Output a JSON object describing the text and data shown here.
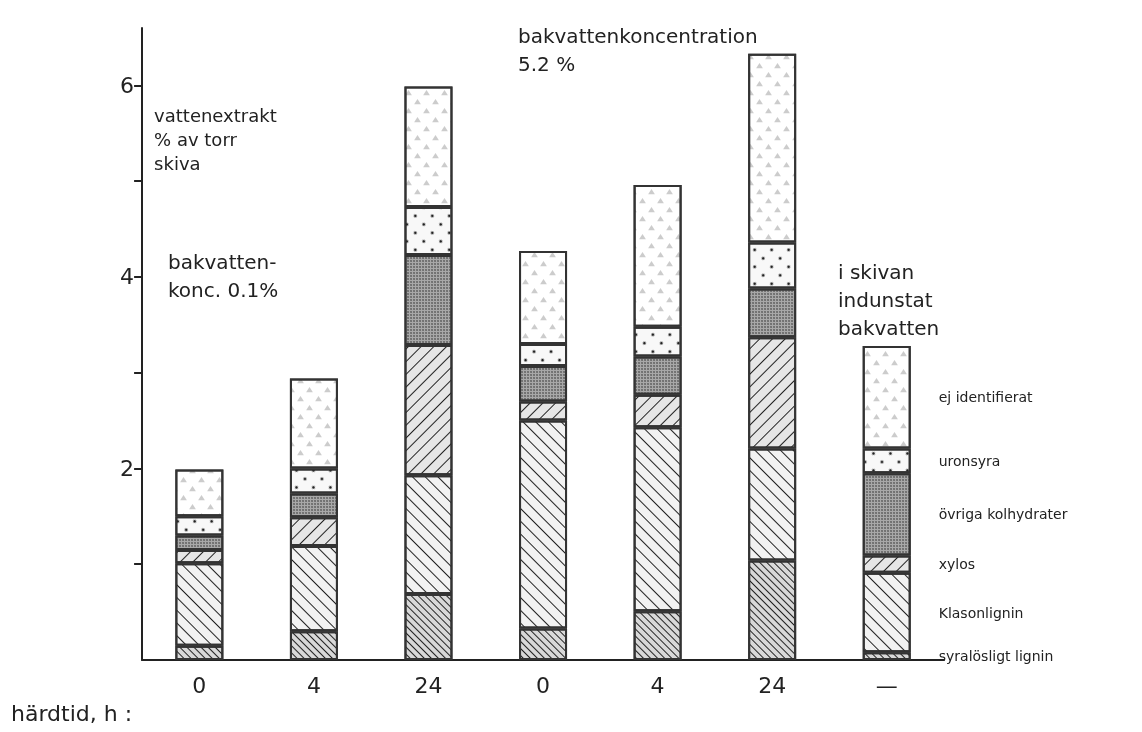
{
  "chart_data": {
    "type": "bar",
    "stacked": true,
    "ylabel": "vattenextrakt\n% av torr\nskiva",
    "xlabel": "härdtid, h :",
    "categories": [
      "0",
      "4",
      "24",
      "0",
      "4",
      "24",
      "—"
    ],
    "ylim": [
      0,
      6.6
    ],
    "yticks": [
      {
        "value": 1,
        "label": null
      },
      2,
      {
        "value": 3,
        "label": null
      },
      4,
      {
        "value": 5,
        "label": null
      },
      6
    ],
    "grid": false,
    "legend": false,
    "annotations": [
      "bakvatten-\nkonc. 0.1%",
      "bakvattenkoncentration\n5.2 %",
      "i skivan\nindunstat\nbakvatten"
    ],
    "series": [
      {
        "name": "syralösligt lignin",
        "color": "#d8d8d8",
        "values": [
          0.15,
          0.3,
          0.69,
          0.33,
          0.51,
          1.04,
          0.08
        ]
      },
      {
        "name": "Klasonlignin",
        "color": "#f2f2f2",
        "values": [
          0.86,
          0.89,
          1.24,
          2.17,
          1.92,
          1.17,
          0.83
        ]
      },
      {
        "name": "xylos",
        "color": "#e6e6e6",
        "values": [
          0.14,
          0.3,
          1.36,
          0.2,
          0.34,
          1.16,
          0.18
        ]
      },
      {
        "name": "övriga kolhydrater",
        "color": "#a8a8a8",
        "values": [
          0.15,
          0.25,
          0.94,
          0.37,
          0.4,
          0.51,
          0.86
        ]
      },
      {
        "name": "uronsyra",
        "color": "#f8f8f8",
        "values": [
          0.2,
          0.26,
          0.5,
          0.23,
          0.31,
          0.48,
          0.26
        ]
      },
      {
        "name": "ej identifierat",
        "color": "#ffffff",
        "values": [
          0.49,
          0.94,
          1.26,
          0.97,
          1.48,
          1.97,
          1.07
        ]
      }
    ]
  }
}
